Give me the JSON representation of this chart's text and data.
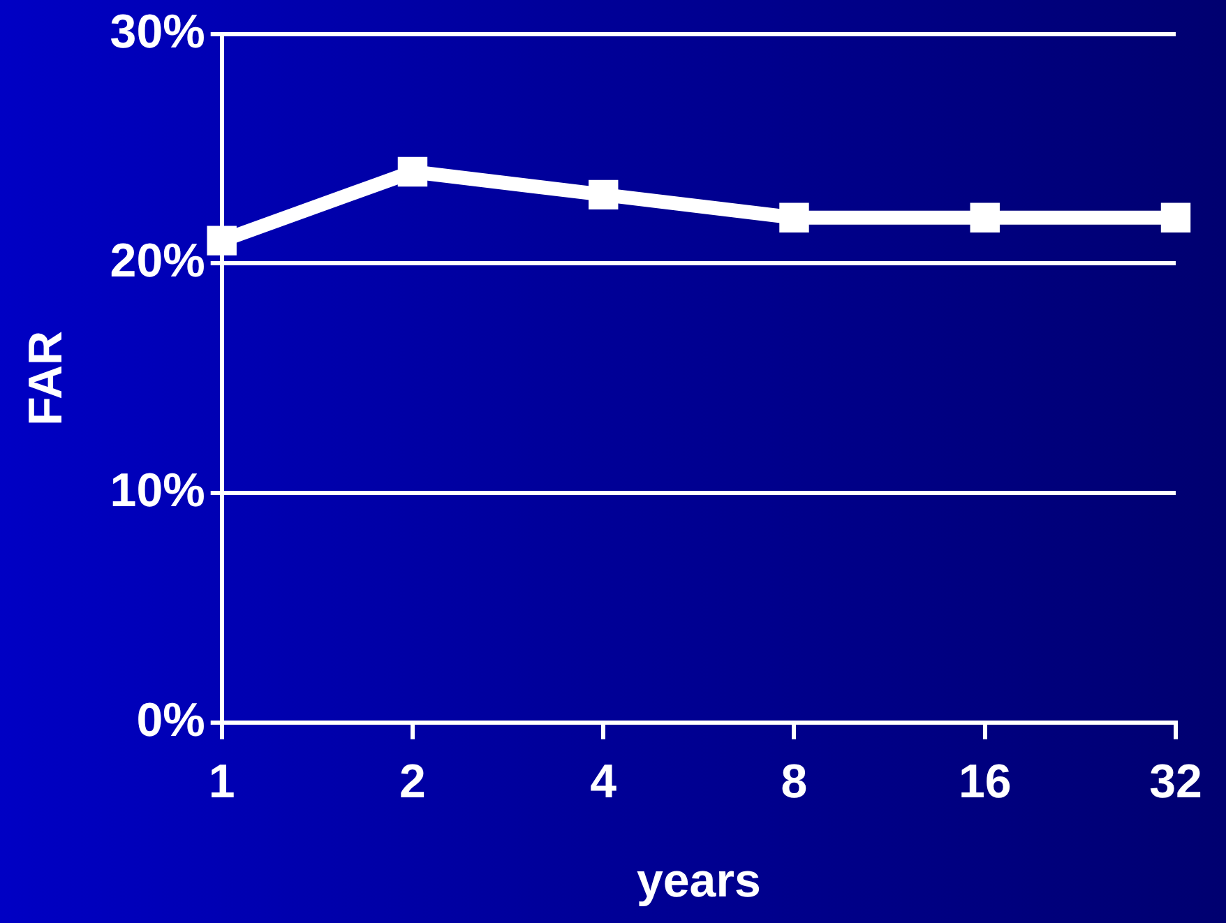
{
  "chart_data": {
    "type": "line",
    "xlabel": "years",
    "ylabel": "FAR",
    "categories": [
      "1",
      "2",
      "4",
      "8",
      "16",
      "32"
    ],
    "series": [
      {
        "color": "#ffffff",
        "values": [
          21,
          24,
          23,
          22,
          22,
          22
        ]
      }
    ],
    "ylim": [
      0,
      30
    ],
    "yticks": [
      {
        "value": 0,
        "label": "0%"
      },
      {
        "value": 10,
        "label": "10%"
      },
      {
        "value": 20,
        "label": "20%"
      },
      {
        "value": 30,
        "label": "30%"
      }
    ],
    "grid": "y",
    "marker": "square",
    "line_style": "solid",
    "legend": false
  }
}
